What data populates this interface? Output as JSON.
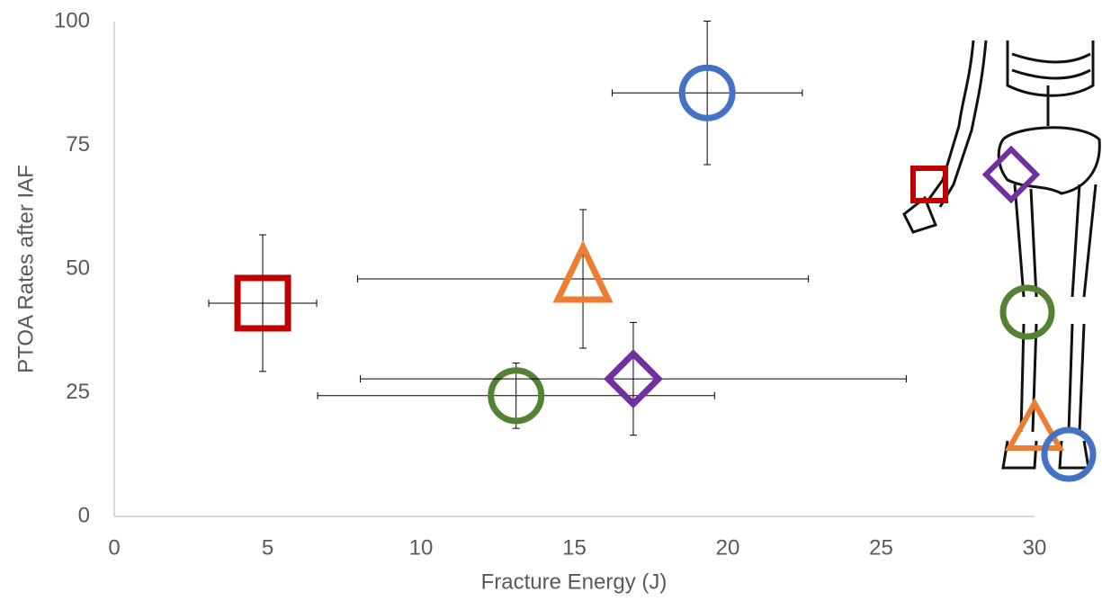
{
  "chart_data": {
    "type": "scatter",
    "x_label": "Fracture Energy (J)",
    "y_label": "PTOA Rates after IAF",
    "xlim": [
      0,
      30
    ],
    "xticks": [
      0,
      5,
      10,
      15,
      20,
      25,
      30
    ],
    "ylim": [
      0,
      100
    ],
    "yticks": [
      0,
      25,
      50,
      75,
      100
    ],
    "grid": false,
    "series": [
      {
        "marker": "circle",
        "color": "#4472c4",
        "x": [
          19.33
        ],
        "y": [
          85.6
        ],
        "x_error": [
          3.1
        ],
        "y_error": [
          14.5
        ]
      },
      {
        "marker": "square",
        "color": "#c00000",
        "x": [
          4.84
        ],
        "y": [
          43.1
        ],
        "x_error": [
          1.76
        ],
        "y_error": [
          13.8
        ]
      },
      {
        "marker": "triangle",
        "color": "#ed7d31",
        "x": [
          15.28
        ],
        "y": [
          48
        ],
        "x_error": [
          7.35
        ],
        "y_error": [
          14
        ]
      },
      {
        "marker": "circle",
        "color": "#548235",
        "x": [
          13.1
        ],
        "y": [
          24.4
        ],
        "x_error": [
          6.47
        ],
        "y_error": [
          6.6
        ]
      },
      {
        "marker": "diamond",
        "color": "#7030a0",
        "x": [
          16.92
        ],
        "y": [
          27.8
        ],
        "x_error": [
          8.9
        ],
        "y_error": [
          11.4
        ]
      }
    ]
  }
}
